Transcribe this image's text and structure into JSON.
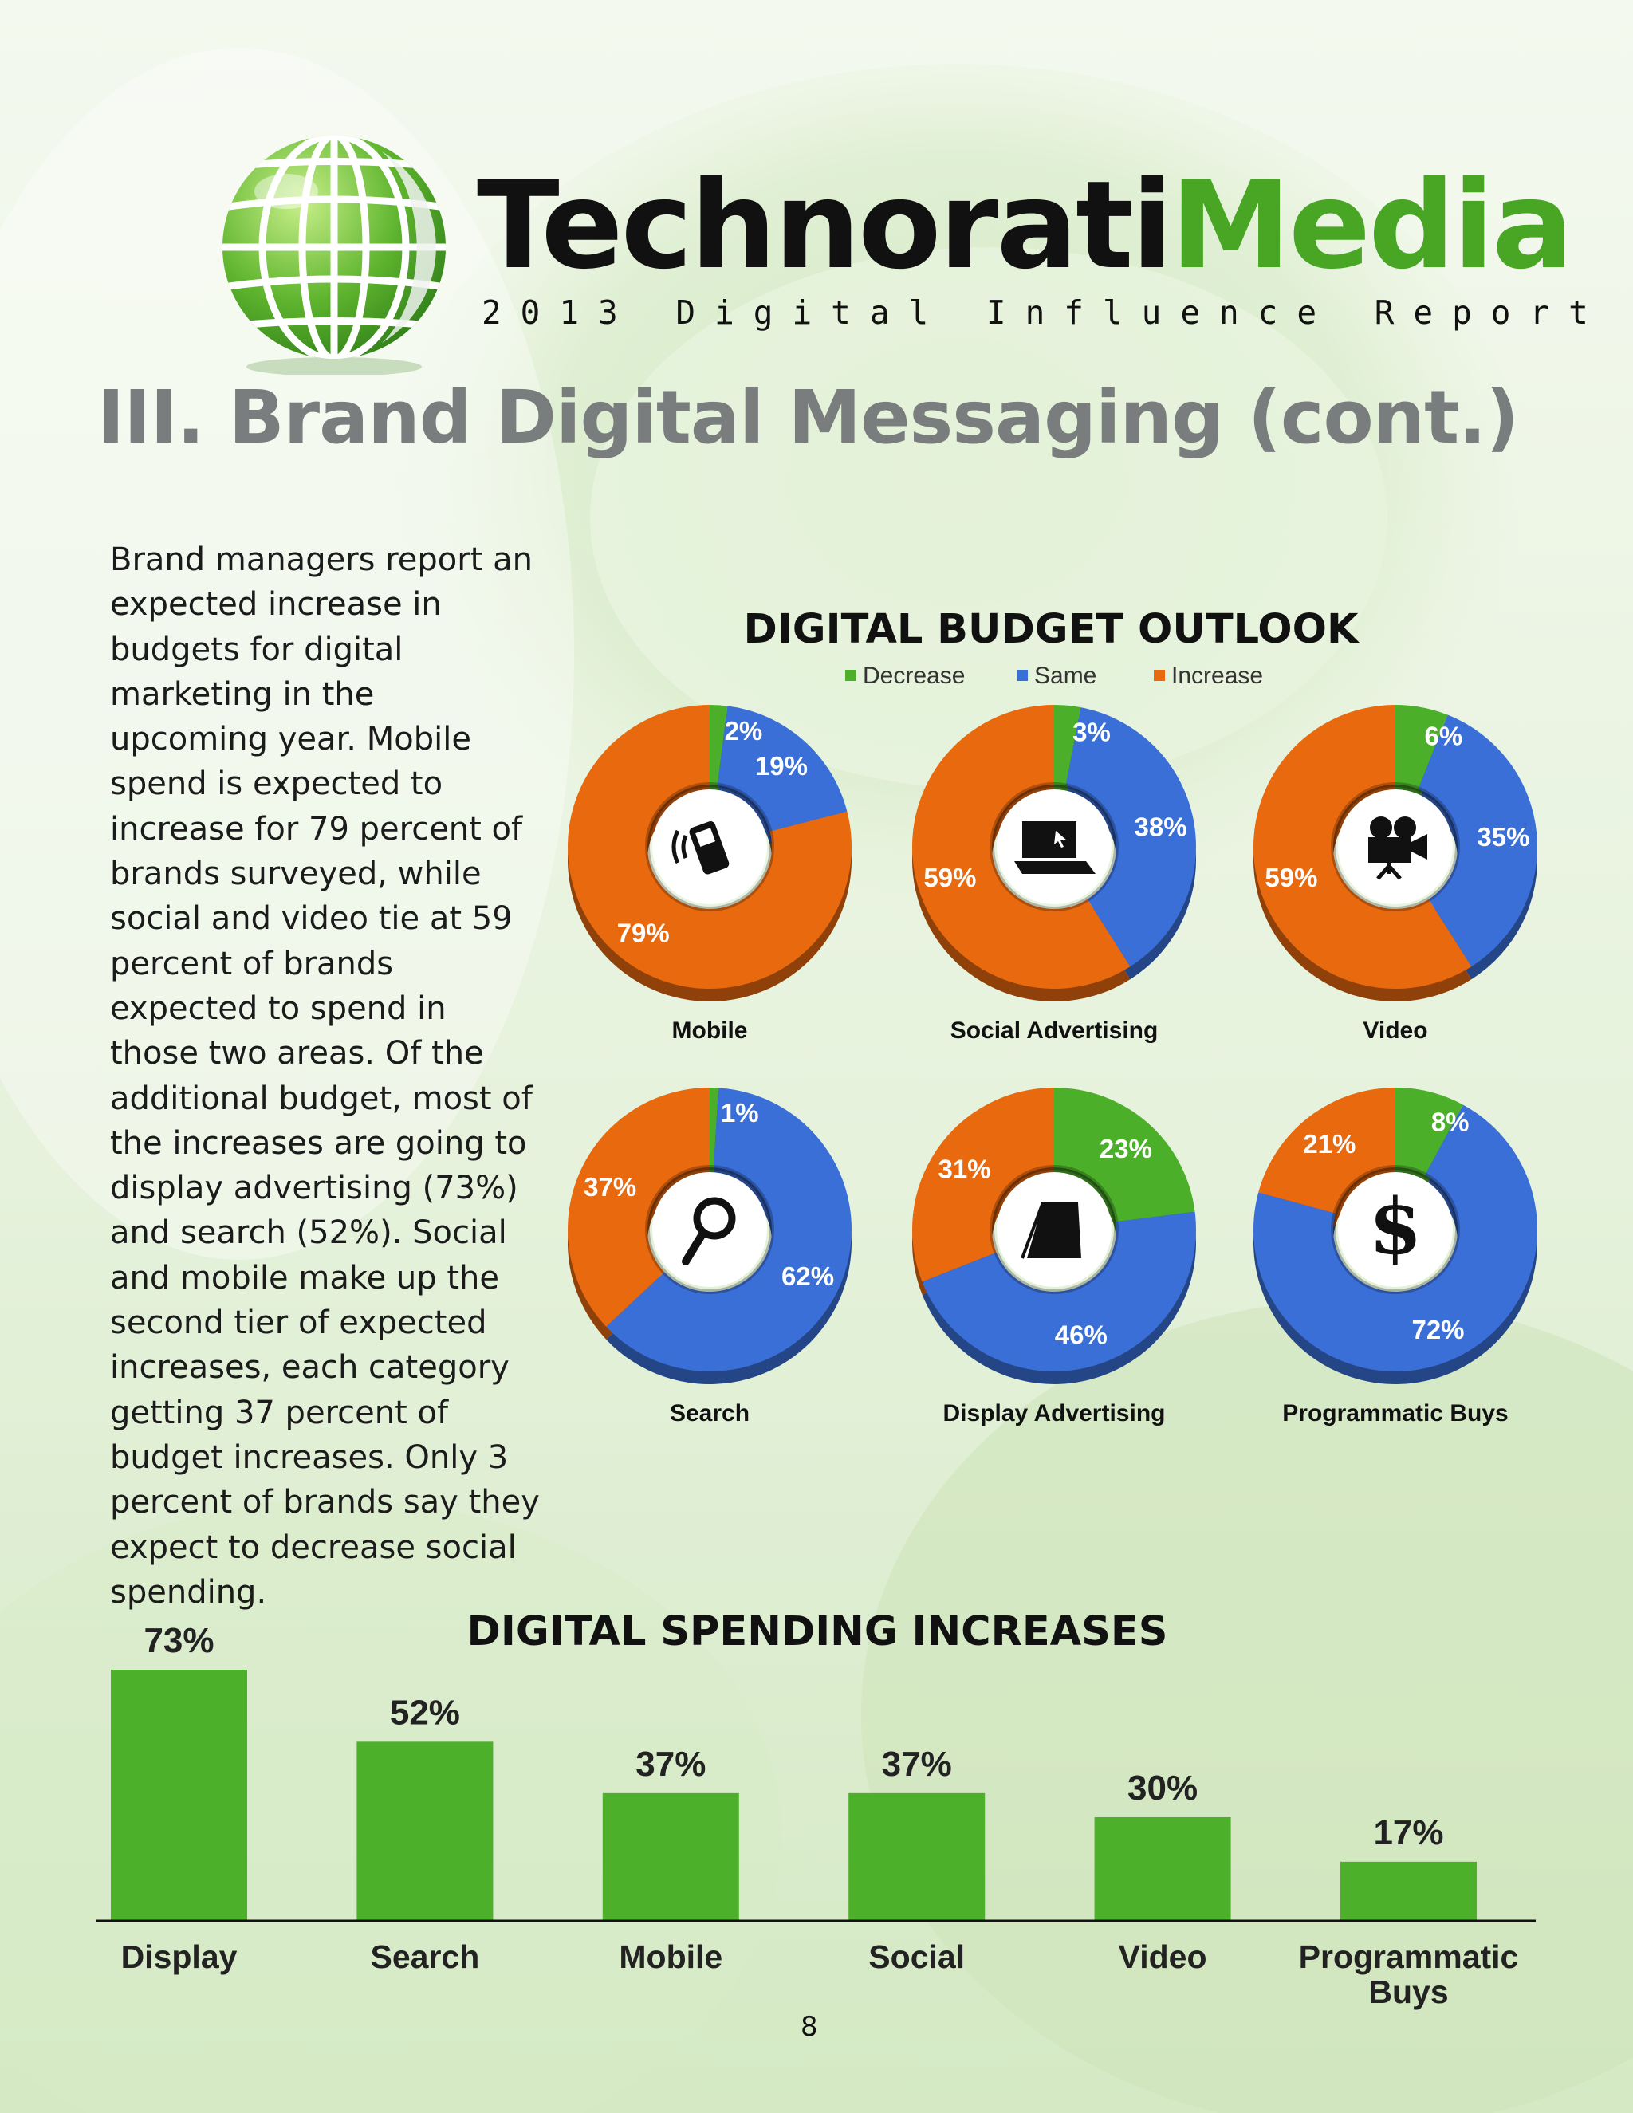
{
  "header": {
    "brand_part1": "Technorati",
    "brand_part2": "Media",
    "subtitle": "2013 Digital Influence Report"
  },
  "section_title": "III. Brand Digital Messaging (cont.)",
  "intro_text": "Brand managers report an expected increase in budgets for digital marketing in the upcoming year. Mobile spend is expected to increase for 79 percent of brands surveyed, while social and video tie at 59 percent of brands expected to spend in those two areas. Of the additional budget, most of the increases are going to display advertising (73%) and search (52%). Social and mobile make up the second tier of expected increases, each category getting 37 percent of budget increases.  Only 3 percent of brands say they expect to decrease social spending.",
  "colors": {
    "decrease": "#4caf2a",
    "same": "#3a6fd8",
    "increase": "#e8690e",
    "bar": "#4cb02a",
    "brand_green": "#49a625",
    "title_gray": "#7a7d7d"
  },
  "chart_data": [
    {
      "type": "pie",
      "variant": "donut",
      "title": "DIGITAL BUDGET OUTLOOK",
      "legend": [
        "Decrease",
        "Same",
        "Increase"
      ],
      "legend_position": "top-center",
      "charts": [
        {
          "name": "Mobile",
          "icon": "mobile-phone-icon",
          "values": {
            "Decrease": 2,
            "Same": 19,
            "Increase": 79
          },
          "labels": [
            "2%",
            "19%",
            "79%"
          ]
        },
        {
          "name": "Social Advertising",
          "icon": "laptop-icon",
          "values": {
            "Decrease": 3,
            "Same": 38,
            "Increase": 59
          },
          "labels": [
            "3%",
            "38%",
            "59%"
          ]
        },
        {
          "name": "Video",
          "icon": "movie-camera-icon",
          "values": {
            "Decrease": 6,
            "Same": 35,
            "Increase": 59
          },
          "labels": [
            "6%",
            "35%",
            "59%"
          ]
        },
        {
          "name": "Search",
          "icon": "magnifier-icon",
          "values": {
            "Decrease": 1,
            "Same": 62,
            "Increase": 37
          },
          "labels": [
            "1%",
            "62%",
            "37%"
          ]
        },
        {
          "name": "Display  Advertising",
          "icon": "display-board-icon",
          "values": {
            "Decrease": 23,
            "Same": 46,
            "Increase": 31
          },
          "labels": [
            "23%",
            "46%",
            "31%"
          ]
        },
        {
          "name": "Programmatic Buys",
          "icon": "dollar-icon",
          "values": {
            "Decrease": 8,
            "Same": 72,
            "Increase": 21
          },
          "labels": [
            "8%",
            "72%",
            "21%"
          ]
        }
      ]
    },
    {
      "type": "bar",
      "title": "DIGITAL SPENDING INCREASES",
      "categories": [
        "Display",
        "Search",
        "Mobile",
        "Social",
        "Video",
        "Programmatic Buys"
      ],
      "values": [
        73,
        52,
        37,
        37,
        30,
        17
      ],
      "value_labels": [
        "73%",
        "52%",
        "37%",
        "37%",
        "30%",
        "17%"
      ],
      "ylim": [
        0,
        80
      ],
      "grid": false
    }
  ],
  "page_number": "8"
}
